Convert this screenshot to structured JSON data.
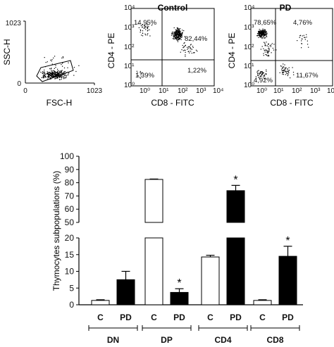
{
  "scatter_panels": [
    {
      "kind": "fsc_ssc",
      "ylabel": "SSC-H",
      "xlabel": "FSC-H",
      "ytick_labels": [
        "1023",
        "0"
      ],
      "xtick_labels": [
        "0",
        "1023"
      ]
    },
    {
      "kind": "quadrant",
      "title": "Control",
      "ylabel": "CD4 - PE",
      "xlabel": "CD8 - FITC",
      "quadrants": {
        "ul": "14,95%",
        "ur": "82,44%",
        "ll": "1,39%",
        "lr": "1,22%"
      }
    },
    {
      "kind": "quadrant",
      "title": "PD",
      "ylabel": "CD4 - PE",
      "xlabel": "CD8 - FITC",
      "quadrants": {
        "ul": "78,65%",
        "ur": "4,76%",
        "ll": "4,92%",
        "lr": "11,67%"
      }
    }
  ],
  "chart_data": {
    "type": "bar",
    "ylabel": "Thymocytes subpopulations (%)",
    "y_axis_break": {
      "lower_range": [
        0,
        20
      ],
      "upper_range": [
        50,
        100
      ]
    },
    "y_ticks_lower": [
      "0",
      "5",
      "10",
      "15",
      "20"
    ],
    "y_ticks_upper": [
      "50",
      "60",
      "70",
      "80",
      "90",
      "100"
    ],
    "groups": [
      {
        "name": "DN",
        "bars": [
          {
            "label": "C",
            "value": 1.3,
            "error": 0.2,
            "fill": "#ffffff",
            "significant": false
          },
          {
            "label": "PD",
            "value": 7.5,
            "error": 2.5,
            "fill": "#000000",
            "significant": false
          }
        ]
      },
      {
        "name": "DP",
        "bars": [
          {
            "label": "C",
            "value": 82.5,
            "error": 0.3,
            "fill": "#ffffff",
            "significant": false
          },
          {
            "label": "PD",
            "value": 3.7,
            "error": 1.1,
            "fill": "#000000",
            "significant": true
          }
        ]
      },
      {
        "name": "CD4",
        "bars": [
          {
            "label": "C",
            "value": 14.3,
            "error": 0.5,
            "fill": "#ffffff",
            "significant": false
          },
          {
            "label": "PD",
            "value": 74,
            "error": 4,
            "fill": "#000000",
            "significant": true
          }
        ]
      },
      {
        "name": "CD8",
        "bars": [
          {
            "label": "C",
            "value": 1.3,
            "error": 0.2,
            "fill": "#ffffff",
            "significant": false
          },
          {
            "label": "PD",
            "value": 14.5,
            "error": 3,
            "fill": "#000000",
            "significant": true
          }
        ]
      }
    ],
    "significance_marker": "*"
  }
}
